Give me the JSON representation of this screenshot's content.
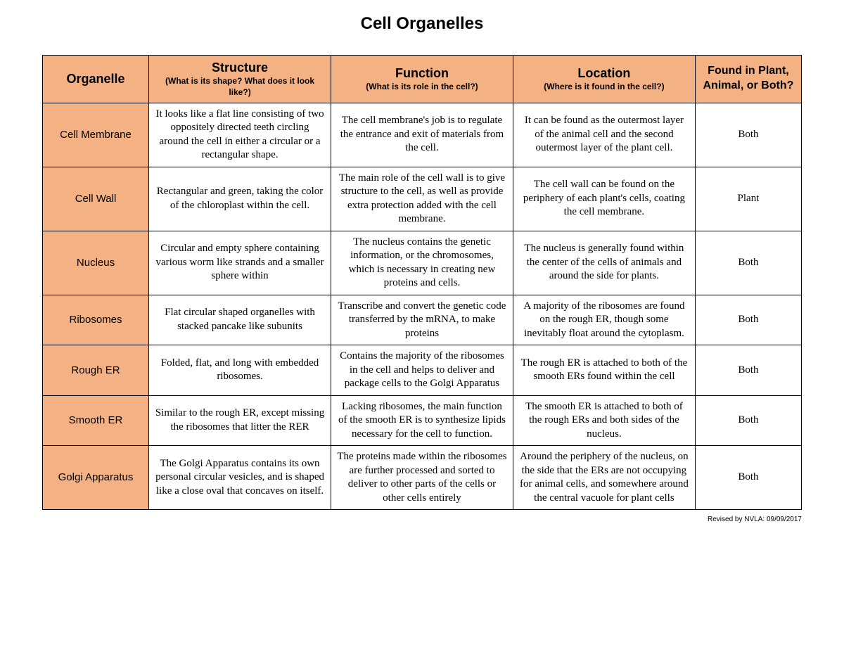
{
  "title": "Cell Organelles",
  "footer": "Revised by NVLA: 09/09/2017",
  "colors": {
    "header_bg": "#f4b183",
    "border": "#000000",
    "page_bg": "#ffffff"
  },
  "columns": [
    {
      "title": "Organelle",
      "sub": ""
    },
    {
      "title": "Structure",
      "sub": "(What is its shape? What does it look like?)"
    },
    {
      "title": "Function",
      "sub": "(What is its role in the cell?)"
    },
    {
      "title": "Location",
      "sub": "(Where is it found in the cell?)"
    },
    {
      "title": "Found in Plant, Animal, or Both?",
      "sub": ""
    }
  ],
  "rows": [
    {
      "name": "Cell Membrane",
      "structure": "It looks like a flat line consisting of two oppositely directed teeth circling around the cell in either a circular or a rectangular shape.",
      "function": "The cell membrane's job is to regulate the entrance and exit of materials from the cell.",
      "location": "It can be found as the outermost layer of the animal cell and the second outermost layer of the plant cell.",
      "found": "Both"
    },
    {
      "name": "Cell Wall",
      "structure": "Rectangular and green, taking the color of the chloroplast within the cell.",
      "function": "The main role of the cell wall is to give structure to the cell, as well as provide extra protection added with the cell membrane.",
      "location": "The cell wall can be found on the periphery of each plant's cells, coating the cell membrane.",
      "found": "Plant"
    },
    {
      "name": "Nucleus",
      "structure": "Circular and empty sphere containing various worm like strands and a smaller sphere within",
      "function": "The nucleus contains the genetic information, or the chromosomes, which is necessary in creating new proteins and cells.",
      "location": "The nucleus is generally found within the center of the cells of animals and around the side for plants.",
      "found": "Both"
    },
    {
      "name": "Ribosomes",
      "structure": "Flat circular shaped organelles with stacked pancake like subunits",
      "function": "Transcribe and convert the genetic code transferred by the mRNA, to make proteins",
      "location": "A majority of the ribosomes are found on the rough ER, though some inevitably float around the cytoplasm.",
      "found": "Both"
    },
    {
      "name": "Rough ER",
      "structure": "Folded, flat, and long with embedded ribosomes.",
      "function": "Contains the majority of the ribosomes in the cell and helps to deliver and package cells to the Golgi Apparatus",
      "location": "The rough ER is attached to both of the smooth ERs found within the cell",
      "found": "Both"
    },
    {
      "name": "Smooth ER",
      "structure": "Similar to the rough ER, except missing the ribosomes that litter the RER",
      "function": "Lacking ribosomes, the main function of the smooth ER is to synthesize lipids necessary for the cell to function.",
      "location": "The smooth ER is attached to both of the rough ERs and both sides of the nucleus.",
      "found": "Both"
    },
    {
      "name": "Golgi Apparatus",
      "structure": "The Golgi Apparatus contains its own personal circular vesicles, and is shaped like a close oval that concaves on itself.",
      "function": "The proteins made within the ribosomes are further processed and sorted to deliver to other parts of the cells or other cells entirely",
      "location": "Around the periphery of the nucleus, on the side that the ERs are not occupying for animal cells, and somewhere around the central vacuole for plant cells",
      "found": "Both"
    }
  ]
}
